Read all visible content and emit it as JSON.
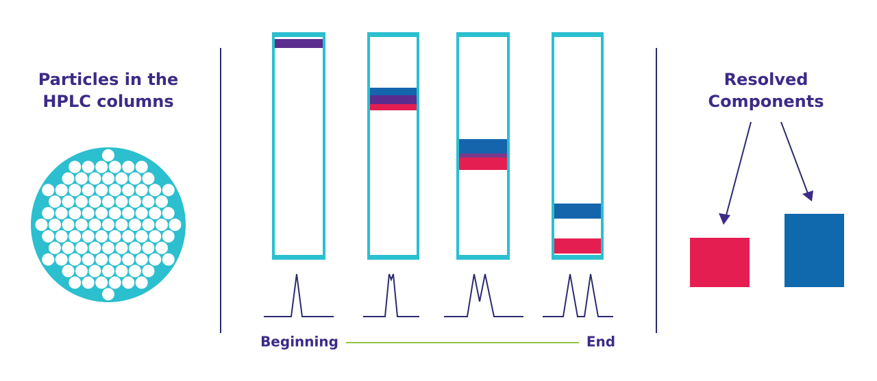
{
  "left_label": {
    "lines": [
      "Particles in the",
      "HPLC columns"
    ]
  },
  "right_label": {
    "lines": [
      "Resolved",
      "Components"
    ]
  },
  "timeline": {
    "start": "Beginning",
    "end": "End"
  }
}
